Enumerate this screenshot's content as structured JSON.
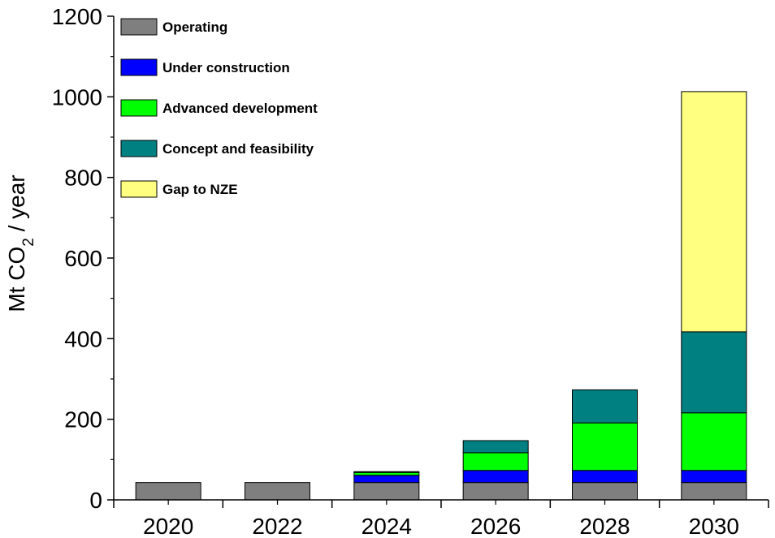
{
  "chart_data": {
    "type": "bar",
    "stacked": true,
    "categories": [
      "2020",
      "2022",
      "2024",
      "2026",
      "2028",
      "2030"
    ],
    "series": [
      {
        "name": "Operating",
        "color": "#7f7f7f",
        "values": [
          43,
          43,
          43,
          43,
          43,
          43
        ]
      },
      {
        "name": "Under construction",
        "color": "#0000ff",
        "values": [
          0,
          0,
          18,
          30,
          30,
          30
        ]
      },
      {
        "name": "Advanced development",
        "color": "#00ff00",
        "values": [
          0,
          0,
          7,
          44,
          118,
          143
        ]
      },
      {
        "name": "Concept and feasibility",
        "color": "#008080",
        "values": [
          0,
          0,
          2,
          30,
          82,
          201
        ]
      },
      {
        "name": "Gap to NZE",
        "color": "#ffff80",
        "values": [
          0,
          0,
          0,
          0,
          0,
          596
        ]
      }
    ],
    "ylabel_main": "Mt CO",
    "ylabel_sub": "2",
    "ylabel_tail": " / year",
    "ylim": [
      0,
      1200
    ],
    "yticks": [
      "0",
      "200",
      "400",
      "600",
      "800",
      "1000",
      "1200"
    ],
    "grid": false,
    "legend_position": "top-left"
  }
}
